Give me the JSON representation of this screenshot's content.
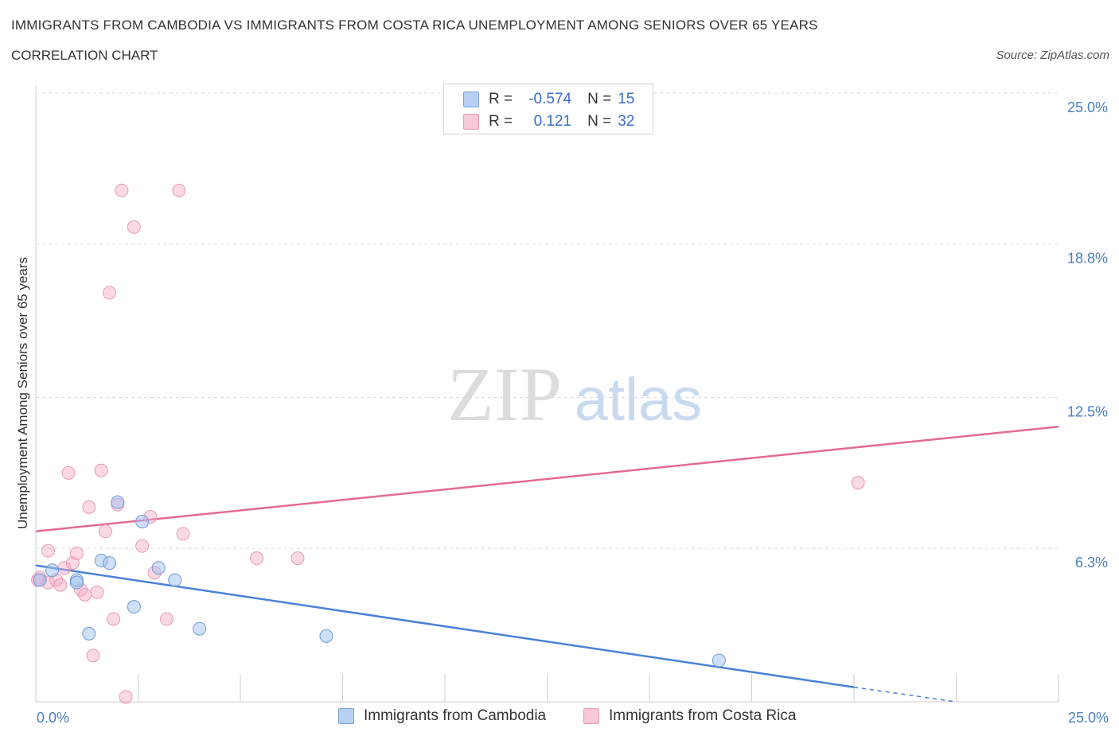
{
  "header": {
    "title": "IMMIGRANTS FROM CAMBODIA VS IMMIGRANTS FROM COSTA RICA UNEMPLOYMENT AMONG SENIORS OVER 65 YEARS",
    "subtitle": "CORRELATION CHART",
    "source": "Source: ZipAtlas.com"
  },
  "watermark": {
    "zip": "ZIP",
    "atlas": "atlas"
  },
  "legend_stats": {
    "rows": [
      {
        "r_label": "R =",
        "r_value": "-0.574",
        "n_label": "N =",
        "n_value": "15"
      },
      {
        "r_label": "R =",
        "r_value": "0.121",
        "n_label": "N =",
        "n_value": "32"
      }
    ]
  },
  "chart_data": {
    "type": "scatter",
    "title": "IMMIGRANTS FROM CAMBODIA VS IMMIGRANTS FROM COSTA RICA UNEMPLOYMENT AMONG SENIORS OVER 65 YEARS",
    "subtitle": "CORRELATION CHART",
    "xlabel": "",
    "ylabel": "Unemployment Among Seniors over 65 years",
    "xlim": [
      0,
      25
    ],
    "ylim": [
      0,
      25
    ],
    "x_tick_labels": [
      "0.0%",
      "25.0%"
    ],
    "y_ticks": [
      6.3,
      12.5,
      18.8,
      25.0
    ],
    "y_tick_labels": [
      "6.3%",
      "12.5%",
      "18.8%",
      "25.0%"
    ],
    "grid": true,
    "legend_position": "bottom",
    "colors": {
      "cambodia": "#4a82d8",
      "costa_rica": "#e46a94"
    },
    "series": [
      {
        "name": "Immigrants from Cambodia",
        "r": -0.574,
        "n": 15,
        "points": [
          {
            "x": 0.1,
            "y": 5.0
          },
          {
            "x": 0.4,
            "y": 5.4
          },
          {
            "x": 1.0,
            "y": 5.0
          },
          {
            "x": 1.0,
            "y": 4.9
          },
          {
            "x": 1.6,
            "y": 5.8
          },
          {
            "x": 1.8,
            "y": 5.7
          },
          {
            "x": 2.0,
            "y": 8.2
          },
          {
            "x": 2.6,
            "y": 7.4
          },
          {
            "x": 1.3,
            "y": 2.8
          },
          {
            "x": 2.4,
            "y": 3.9
          },
          {
            "x": 3.0,
            "y": 5.5
          },
          {
            "x": 3.4,
            "y": 5.0
          },
          {
            "x": 4.0,
            "y": 3.0
          },
          {
            "x": 7.1,
            "y": 2.7
          },
          {
            "x": 16.7,
            "y": 1.7
          }
        ],
        "trend": {
          "x0": 0,
          "y0": 5.6,
          "x1": 20,
          "y1": 0.6,
          "dashed_to_x": 22.5,
          "dashed_to_y": 0.0
        }
      },
      {
        "name": "Immigrants from Costa Rica",
        "r": 0.121,
        "n": 32,
        "points": [
          {
            "x": 0.1,
            "y": 5.1
          },
          {
            "x": 0.3,
            "y": 4.9
          },
          {
            "x": 0.3,
            "y": 6.2
          },
          {
            "x": 0.5,
            "y": 5.0
          },
          {
            "x": 0.6,
            "y": 4.8
          },
          {
            "x": 0.7,
            "y": 5.5
          },
          {
            "x": 0.8,
            "y": 9.4
          },
          {
            "x": 0.9,
            "y": 5.7
          },
          {
            "x": 1.0,
            "y": 6.1
          },
          {
            "x": 1.1,
            "y": 4.6
          },
          {
            "x": 1.2,
            "y": 4.4
          },
          {
            "x": 1.3,
            "y": 8.0
          },
          {
            "x": 1.4,
            "y": 1.9
          },
          {
            "x": 1.5,
            "y": 4.5
          },
          {
            "x": 1.6,
            "y": 9.5
          },
          {
            "x": 1.7,
            "y": 7.0
          },
          {
            "x": 1.8,
            "y": 16.8
          },
          {
            "x": 1.9,
            "y": 3.4
          },
          {
            "x": 2.0,
            "y": 8.1
          },
          {
            "x": 2.1,
            "y": 21.0
          },
          {
            "x": 2.2,
            "y": 0.2
          },
          {
            "x": 2.4,
            "y": 19.5
          },
          {
            "x": 2.6,
            "y": 6.4
          },
          {
            "x": 2.8,
            "y": 7.6
          },
          {
            "x": 2.9,
            "y": 5.3
          },
          {
            "x": 3.2,
            "y": 3.4
          },
          {
            "x": 3.5,
            "y": 21.0
          },
          {
            "x": 3.6,
            "y": 6.9
          },
          {
            "x": 5.4,
            "y": 5.9
          },
          {
            "x": 6.4,
            "y": 5.9
          },
          {
            "x": 20.1,
            "y": 9.0
          },
          {
            "x": 0.05,
            "y": 5.0
          }
        ],
        "trend": {
          "x0": 0,
          "y0": 7.0,
          "x1": 25,
          "y1": 11.3
        }
      }
    ]
  }
}
